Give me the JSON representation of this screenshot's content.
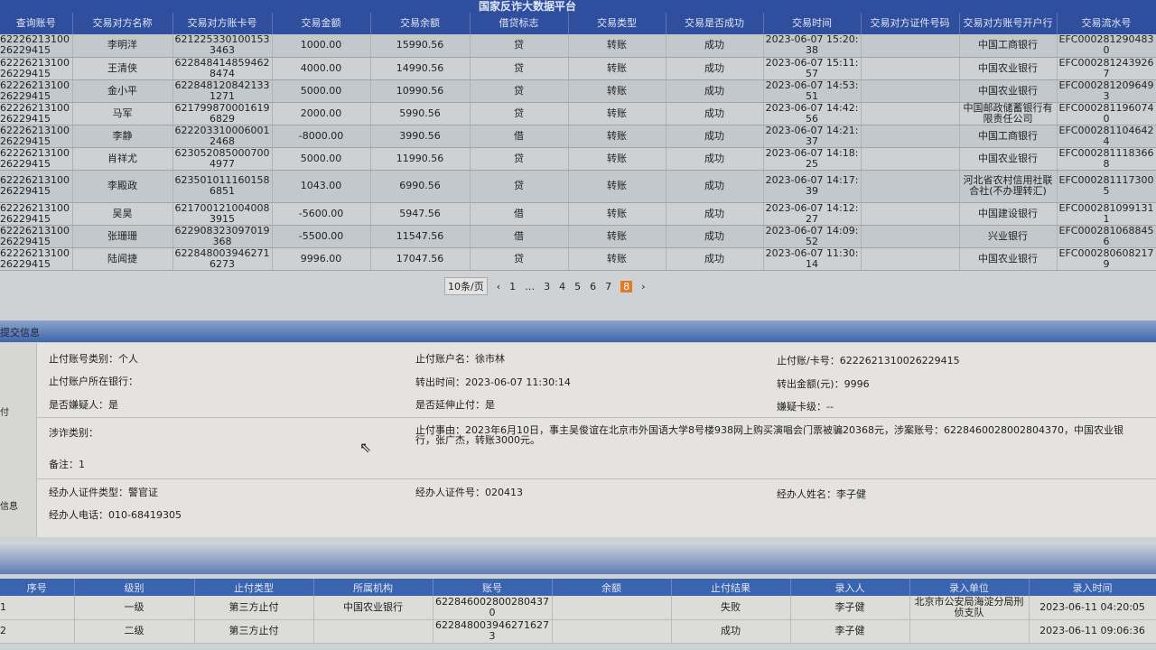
{
  "site_title": "国家反诈大数据平台",
  "transactions": {
    "headers": [
      "查询账号",
      "交易对方名称",
      "交易对方账卡号",
      "交易金额",
      "交易余额",
      "借贷标志",
      "交易类型",
      "交易是否成功",
      "交易时间",
      "交易对方证件号码",
      "交易对方账号开户行",
      "交易流水号"
    ],
    "rows": [
      [
        "6222621310026229415",
        "李明洋",
        "6212253301001533463",
        "1000.00",
        "15990.56",
        "贷",
        "转账",
        "成功",
        "2023-06-07 15:20:38",
        "",
        "中国工商银行",
        "EFC0002812904830"
      ],
      [
        "6222621310026229415",
        "王清侠",
        "6228484148594628474",
        "4000.00",
        "14990.56",
        "贷",
        "转账",
        "成功",
        "2023-06-07 15:11:57",
        "",
        "中国农业银行",
        "EFC0002812439267"
      ],
      [
        "6222621310026229415",
        "金小平",
        "6228481208421331271",
        "5000.00",
        "10990.56",
        "贷",
        "转账",
        "成功",
        "2023-06-07 14:53:51",
        "",
        "中国农业银行",
        "EFC0002812096493"
      ],
      [
        "6222621310026229415",
        "马军",
        "6217998700016196829",
        "2000.00",
        "5990.56",
        "贷",
        "转账",
        "成功",
        "2023-06-07 14:42:56",
        "",
        "中国邮政储蓄银行有限责任公司",
        "EFC0002811960740"
      ],
      [
        "6222621310026229415",
        "李静",
        "6222033100060012468",
        "-8000.00",
        "3990.56",
        "借",
        "转账",
        "成功",
        "2023-06-07 14:21:37",
        "",
        "中国工商银行",
        "EFC0002811046424"
      ],
      [
        "6222621310026229415",
        "肖祥尤",
        "6230520850007004977",
        "5000.00",
        "11990.56",
        "贷",
        "转账",
        "成功",
        "2023-06-07 14:18:25",
        "",
        "中国农业银行",
        "EFC0002811183668"
      ],
      [
        "6222621310026229415",
        "李殿政",
        "6235010111601586851",
        "1043.00",
        "6990.56",
        "贷",
        "转账",
        "成功",
        "2023-06-07 14:17:39",
        "",
        "河北省农村信用社联合社(不办理转汇)",
        "EFC0002811173005"
      ],
      [
        "6222621310026229415",
        "吴昊",
        "6217001210040083915",
        "-5600.00",
        "5947.56",
        "借",
        "转账",
        "成功",
        "2023-06-07 14:12:27",
        "",
        "中国建设银行",
        "EFC0002810991311"
      ],
      [
        "6222621310026229415",
        "张珊珊",
        "622908323097019368",
        "-5500.00",
        "11547.56",
        "借",
        "转账",
        "成功",
        "2023-06-07 14:09:52",
        "",
        "兴业银行",
        "EFC0002810688456"
      ],
      [
        "6222621310026229415",
        "陆闻捷",
        "6228480039462716273",
        "9996.00",
        "17047.56",
        "贷",
        "转账",
        "成功",
        "2023-06-07 11:30:14",
        "",
        "中国农业银行",
        "EFC0002806082179"
      ]
    ]
  },
  "pagination": {
    "page_size": "10条/页",
    "pages": [
      "1",
      "…",
      "3",
      "4",
      "5",
      "6",
      "7",
      "8"
    ],
    "current": "8"
  },
  "section1": {
    "title": "提交信息",
    "side1": "付",
    "side2": "信息",
    "fields": {
      "acct_type": "止付账号类别：个人",
      "acct_name": "止付账户名：徐市林",
      "card": "止付账/卡号：6222621310026229415",
      "bank": "止付账户所在银行：",
      "out_time": "转出时间：2023-06-07 11:30:14",
      "out_amount": "转出金额(元)：9996",
      "suspect": "是否嫌疑人：是",
      "extend": "是否延伸止付：是",
      "card_level": "嫌疑卡级：--",
      "fraud_type": "涉诈类别：",
      "reason": "止付事由：2023年6月10日，事主吴俊谊在北京市外国语大学8号楼938网上购买演唱会门票被骗20368元，涉案账号：6228460028002804370，中国农业银行，张广杰，转账3000元。",
      "note": "备注：1",
      "officer_id_type": "经办人证件类型：警官证",
      "officer_id": "经办人证件号：020413",
      "officer_name": "经办人姓名：李子健",
      "officer_phone": "经办人电话：010-68419305"
    }
  },
  "stops": {
    "headers": [
      "序号",
      "级别",
      "止付类型",
      "所属机构",
      "账号",
      "余额",
      "止付结果",
      "录入人",
      "录入单位",
      "录入时间"
    ],
    "rows": [
      [
        "1",
        "一级",
        "第三方止付",
        "中国农业银行",
        "6228460028002804370",
        "",
        "失败",
        "李子健",
        "北京市公安局海淀分局刑侦支队",
        "2023-06-11 04:20:05"
      ],
      [
        "2",
        "二级",
        "第三方止付",
        "",
        "6228480039462716273",
        "",
        "成功",
        "李子健",
        "",
        "2023-06-11 09:06:36"
      ]
    ]
  },
  "colors": {
    "header_blue": "#2f4f9e",
    "current_page": "#e07b2a"
  }
}
